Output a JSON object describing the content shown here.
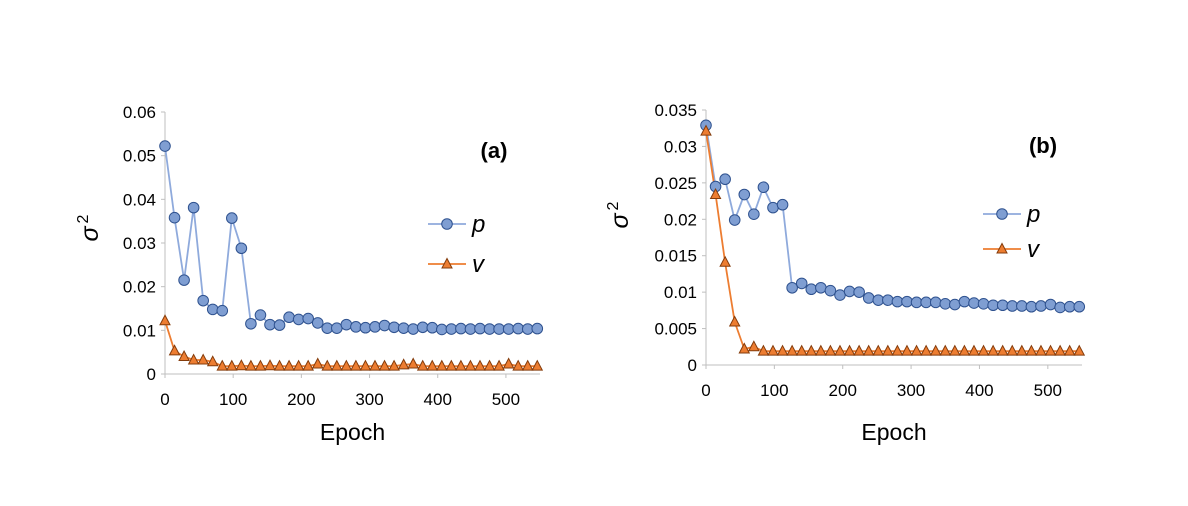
{
  "chart_data": [
    {
      "type": "line",
      "panel_label": "(a)",
      "xlabel": "Epoch",
      "ylabel": "σ",
      "ylabel_superscript": "2",
      "xlim": [
        0,
        550
      ],
      "ylim": [
        0,
        0.06
      ],
      "xticks": [
        0,
        100,
        200,
        300,
        400,
        500
      ],
      "xtick_labels": [
        "0",
        "100",
        "200",
        "300",
        "400",
        "500"
      ],
      "yticks": [
        0,
        0.01,
        0.02,
        0.03,
        0.04,
        0.05,
        0.06
      ],
      "ytick_labels": [
        "0",
        "0.01",
        "0.02",
        "0.03",
        "0.04",
        "0.05",
        "0.06"
      ],
      "grid": false,
      "legend_position": "right",
      "series": [
        {
          "name": "p",
          "marker": "circle",
          "color": "#7f9ed2",
          "line_color": "#8faadc",
          "x": [
            0,
            14,
            28,
            42,
            56,
            70,
            84,
            98,
            112,
            126,
            140,
            154,
            168,
            182,
            196,
            210,
            224,
            238,
            252,
            266,
            280,
            294,
            308,
            322,
            336,
            350,
            364,
            378,
            392,
            406,
            420,
            434,
            448,
            462,
            476,
            490,
            504,
            518,
            532,
            546
          ],
          "y": [
            0.0522,
            0.0358,
            0.0215,
            0.0381,
            0.0168,
            0.0148,
            0.0145,
            0.0357,
            0.0288,
            0.0115,
            0.0135,
            0.0113,
            0.0112,
            0.013,
            0.0125,
            0.0127,
            0.0117,
            0.0105,
            0.0105,
            0.0113,
            0.0108,
            0.0106,
            0.0108,
            0.0111,
            0.0107,
            0.0105,
            0.0103,
            0.0107,
            0.0106,
            0.0102,
            0.0103,
            0.0104,
            0.0103,
            0.0104,
            0.0103,
            0.0103,
            0.0103,
            0.0104,
            0.0103,
            0.0104
          ]
        },
        {
          "name": "v",
          "marker": "triangle",
          "color": "#ed7d31",
          "line_color": "#ed7d31",
          "x": [
            0,
            14,
            28,
            42,
            56,
            70,
            84,
            98,
            112,
            126,
            140,
            154,
            168,
            182,
            196,
            210,
            224,
            238,
            252,
            266,
            280,
            294,
            308,
            322,
            336,
            350,
            364,
            378,
            392,
            406,
            420,
            434,
            448,
            462,
            476,
            490,
            504,
            518,
            532,
            546
          ],
          "y": [
            0.0122,
            0.0053,
            0.004,
            0.0032,
            0.0032,
            0.0028,
            0.0018,
            0.0018,
            0.0019,
            0.0018,
            0.0018,
            0.0019,
            0.0018,
            0.0018,
            0.0018,
            0.0018,
            0.0023,
            0.0018,
            0.0018,
            0.0018,
            0.0018,
            0.0018,
            0.0018,
            0.0018,
            0.0018,
            0.0021,
            0.0023,
            0.0018,
            0.0018,
            0.0018,
            0.0018,
            0.0018,
            0.0018,
            0.0018,
            0.0018,
            0.0018,
            0.0023,
            0.0018,
            0.0018,
            0.0018
          ]
        }
      ]
    },
    {
      "type": "line",
      "panel_label": "(b)",
      "xlabel": "Epoch",
      "ylabel": "σ",
      "ylabel_superscript": "2",
      "xlim": [
        0,
        550
      ],
      "ylim": [
        0,
        0.035
      ],
      "xticks": [
        0,
        100,
        200,
        300,
        400,
        500
      ],
      "xtick_labels": [
        "0",
        "100",
        "200",
        "300",
        "400",
        "500"
      ],
      "yticks": [
        0,
        0.005,
        0.01,
        0.015,
        0.02,
        0.025,
        0.03,
        0.035
      ],
      "ytick_labels": [
        "0",
        "0.005",
        "0.01",
        "0.015",
        "0.02",
        "0.025",
        "0.03",
        "0.035"
      ],
      "grid": false,
      "legend_position": "right",
      "series": [
        {
          "name": "p",
          "marker": "circle",
          "color": "#7f9ed2",
          "line_color": "#8faadc",
          "x": [
            0,
            14,
            28,
            42,
            56,
            70,
            84,
            98,
            112,
            126,
            140,
            154,
            168,
            182,
            196,
            210,
            224,
            238,
            252,
            266,
            280,
            294,
            308,
            322,
            336,
            350,
            364,
            378,
            392,
            406,
            420,
            434,
            448,
            462,
            476,
            490,
            504,
            518,
            532,
            546
          ],
          "y": [
            0.0329,
            0.0245,
            0.0255,
            0.0199,
            0.0234,
            0.0207,
            0.0244,
            0.0216,
            0.022,
            0.0106,
            0.0112,
            0.0104,
            0.0106,
            0.0102,
            0.0096,
            0.0101,
            0.01,
            0.0092,
            0.0089,
            0.0089,
            0.0087,
            0.0087,
            0.0086,
            0.0086,
            0.0086,
            0.0084,
            0.0083,
            0.0087,
            0.0085,
            0.0084,
            0.0082,
            0.0082,
            0.0081,
            0.0081,
            0.008,
            0.0081,
            0.0083,
            0.0079,
            0.008,
            0.008
          ]
        },
        {
          "name": "v",
          "marker": "triangle",
          "color": "#ed7d31",
          "line_color": "#ed7d31",
          "x": [
            0,
            14,
            28,
            42,
            56,
            70,
            84,
            98,
            112,
            126,
            140,
            154,
            168,
            182,
            196,
            210,
            224,
            238,
            252,
            266,
            280,
            294,
            308,
            322,
            336,
            350,
            364,
            378,
            392,
            406,
            420,
            434,
            448,
            462,
            476,
            490,
            504,
            518,
            532,
            546
          ],
          "y": [
            0.0321,
            0.0234,
            0.0141,
            0.0059,
            0.0022,
            0.0025,
            0.0019,
            0.0019,
            0.0019,
            0.0019,
            0.0019,
            0.0019,
            0.0019,
            0.0019,
            0.0019,
            0.0019,
            0.0019,
            0.0019,
            0.0019,
            0.0019,
            0.0019,
            0.0019,
            0.0019,
            0.0019,
            0.0019,
            0.0019,
            0.0019,
            0.0019,
            0.0019,
            0.0019,
            0.0019,
            0.0019,
            0.0019,
            0.0019,
            0.0019,
            0.0019,
            0.0019,
            0.0019,
            0.0019,
            0.0019
          ]
        }
      ]
    }
  ]
}
